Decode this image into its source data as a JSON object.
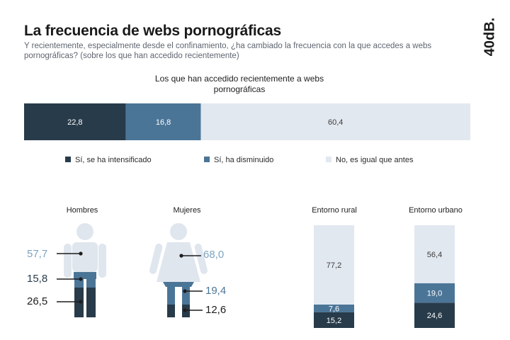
{
  "header": {
    "title": "La frecuencia de webs pornográficas",
    "subtitle": "Y recientemente, especialmente desde el confinamiento, ¿ha cambiado la frecuencia con la que accedes a webs pornográficas? (sobre los que han accedido recientemente)",
    "logo_text": "40dB."
  },
  "colors": {
    "dark": "#283b4a",
    "mid": "#4b7597",
    "light": "#e2e8f0",
    "light_text": "#7ea4c1"
  },
  "chart_data": [
    {
      "type": "bar",
      "orientation": "horizontal-stacked",
      "title": "Los que han accedido recientemente a webs pornográficas",
      "series": [
        {
          "name": "Sí, se ha intensificado",
          "values": [
            22.8
          ],
          "labels": [
            "22,8"
          ]
        },
        {
          "name": "Sí, ha disminuido",
          "values": [
            16.8
          ],
          "labels": [
            "16,8"
          ]
        },
        {
          "name": "No, es igual que antes",
          "values": [
            60.4
          ],
          "labels": [
            "60,4"
          ]
        }
      ]
    },
    {
      "type": "bar",
      "orientation": "pictogram",
      "categories": [
        "Hombres",
        "Mujeres"
      ],
      "series": [
        {
          "name": "No, es igual que antes",
          "values": [
            57.7,
            68.0
          ],
          "labels": [
            "57,7",
            "68,0"
          ]
        },
        {
          "name": "Sí, ha disminuido",
          "values": [
            15.8,
            19.4
          ],
          "labels": [
            "15,8",
            "19,4"
          ]
        },
        {
          "name": "Sí, se ha intensificado",
          "values": [
            26.5,
            12.6
          ],
          "labels": [
            "26,5",
            "12,6"
          ]
        }
      ]
    },
    {
      "type": "bar",
      "orientation": "vertical-stacked",
      "categories": [
        "Entorno rural",
        "Entorno urbano"
      ],
      "series": [
        {
          "name": "Sí, se ha intensificado",
          "values": [
            15.2,
            24.6
          ],
          "labels": [
            "15,2",
            "24,6"
          ]
        },
        {
          "name": "Sí, ha disminuido",
          "values": [
            7.6,
            19.0
          ],
          "labels": [
            "7,6",
            "19,0"
          ]
        },
        {
          "name": "No, es igual que antes",
          "values": [
            77.2,
            56.4
          ],
          "labels": [
            "77,2",
            "56,4"
          ]
        }
      ]
    }
  ]
}
